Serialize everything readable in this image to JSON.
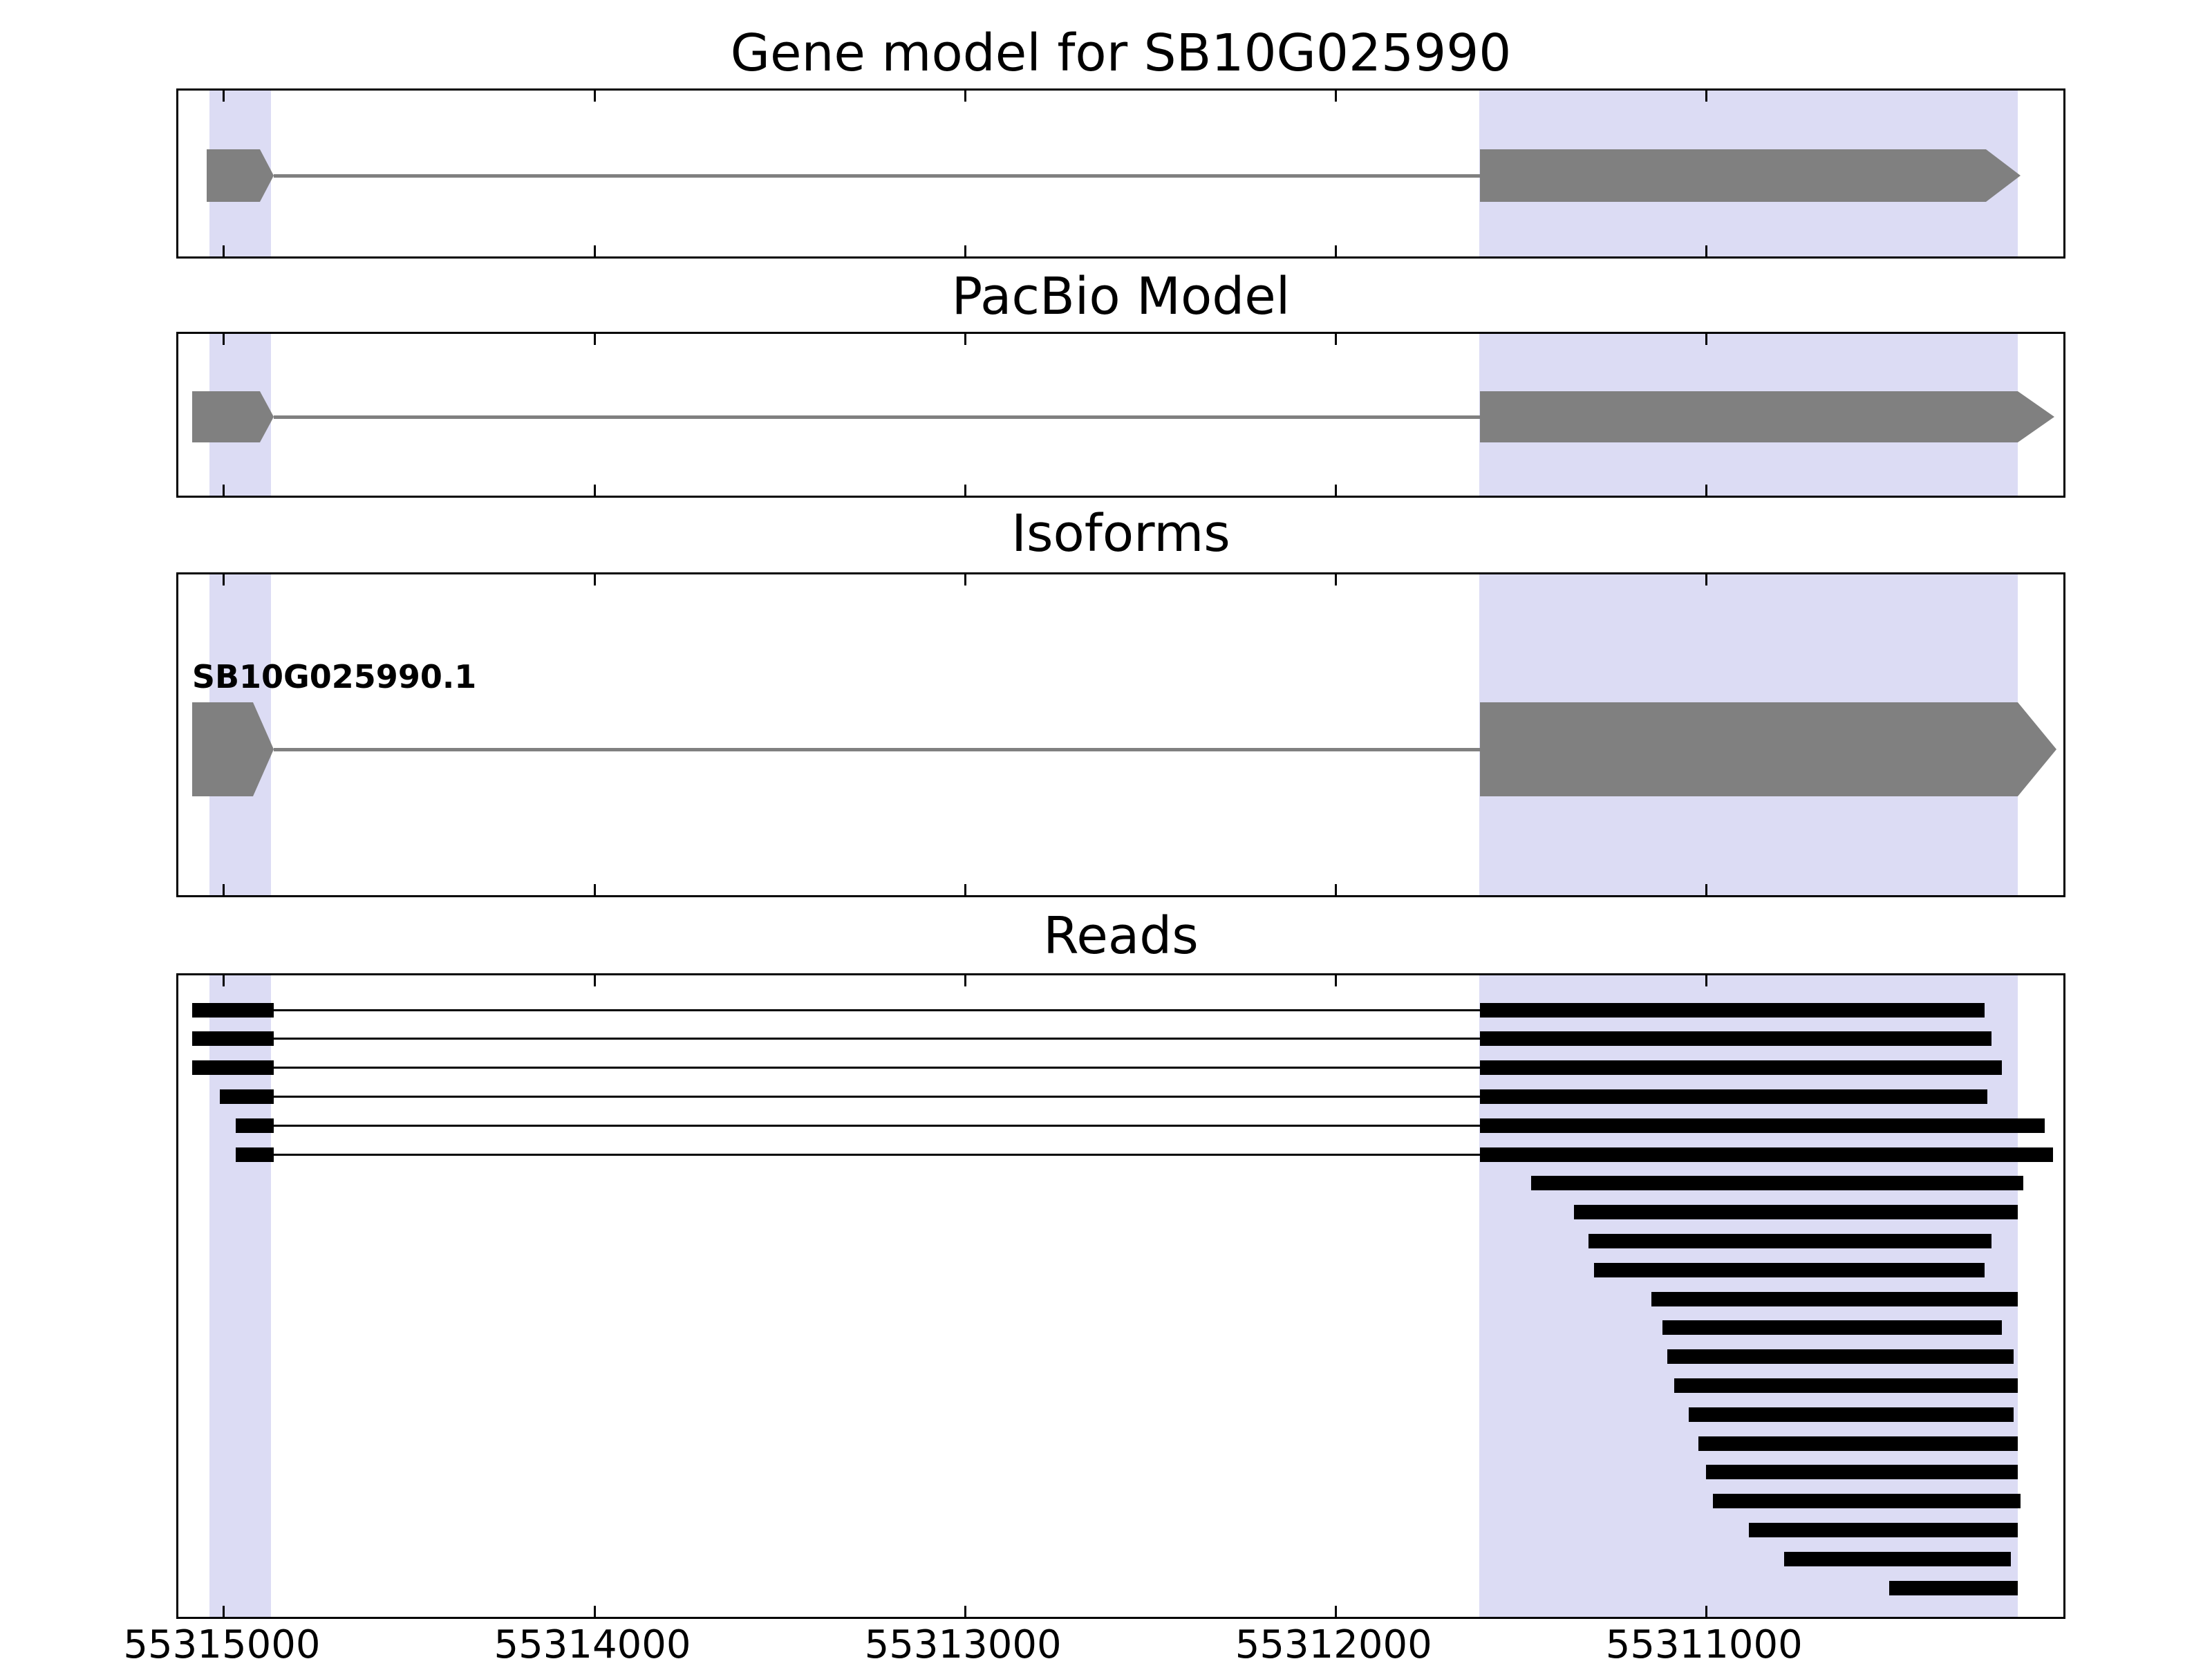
{
  "colors": {
    "background": "#ffffff",
    "highlight_band": "#dcdcf4",
    "gene_fill": "#808080",
    "read_fill": "#000000",
    "axis": "#000000"
  },
  "chart_data": {
    "type": "bar",
    "subtype": "genome-browser-tracks",
    "x_axis": {
      "domain": [
        55315123,
        55310025
      ],
      "reversed": true,
      "ticks": [
        55315000,
        55314000,
        55313000,
        55312000,
        55311000
      ],
      "tick_labels": [
        "55315000",
        "55314000",
        "55313000",
        "55312000",
        "55311000"
      ]
    },
    "highlight_regions": [
      {
        "start": 55315039,
        "end": 55314873
      },
      {
        "start": 55311612,
        "end": 55310159
      }
    ],
    "panels": [
      {
        "key": "gene_model",
        "title": "Gene model for SB10G025990",
        "features": [
          {
            "label": "",
            "exon_left": [
              55315047,
              55314866
            ],
            "intron": [
              55314866,
              55311610
            ],
            "body": [
              55311610,
              55310245
            ],
            "tip": 55310150
          }
        ]
      },
      {
        "key": "pacbio_model",
        "title": "PacBio Model",
        "features": [
          {
            "label": "",
            "exon_left": [
              55315086,
              55314866
            ],
            "intron": [
              55314866,
              55311610
            ],
            "body": [
              55311610,
              55310160
            ],
            "tip": 55310060
          }
        ]
      },
      {
        "key": "isoforms",
        "title": "Isoforms",
        "features": [
          {
            "label": "SB10G025990.1",
            "exon_left": [
              55315086,
              55314866
            ],
            "intron": [
              55314866,
              55311610
            ],
            "body": [
              55311610,
              55310160
            ],
            "tip": 55310055
          }
        ]
      },
      {
        "key": "reads",
        "title": "Reads",
        "reads": [
          {
            "segments": [
              [
                55315086,
                55314866
              ],
              [
                55311610,
                55310249
              ]
            ]
          },
          {
            "segments": [
              [
                55315086,
                55314866
              ],
              [
                55311610,
                55310230
              ]
            ]
          },
          {
            "segments": [
              [
                55315086,
                55314866
              ],
              [
                55311610,
                55310203
              ]
            ]
          },
          {
            "segments": [
              [
                55315012,
                55314866
              ],
              [
                55311610,
                55310241
              ]
            ]
          },
          {
            "segments": [
              [
                55314969,
                55314866
              ],
              [
                55311610,
                55310086
              ]
            ]
          },
          {
            "segments": [
              [
                55314969,
                55314866
              ],
              [
                55311610,
                55310065
              ]
            ]
          },
          {
            "segments": [
              [
                55311473,
                55310144
              ]
            ]
          },
          {
            "segments": [
              [
                55311357,
                55310159
              ]
            ]
          },
          {
            "segments": [
              [
                55311318,
                55310230
              ]
            ]
          },
          {
            "segments": [
              [
                55311303,
                55310249
              ]
            ]
          },
          {
            "segments": [
              [
                55311148,
                55310159
              ]
            ]
          },
          {
            "segments": [
              [
                55311118,
                55310203
              ]
            ]
          },
          {
            "segments": [
              [
                55311105,
                55310170
              ]
            ]
          },
          {
            "segments": [
              [
                55311086,
                55310159
              ]
            ]
          },
          {
            "segments": [
              [
                55311047,
                55310170
              ]
            ]
          },
          {
            "segments": [
              [
                55311021,
                55310159
              ]
            ]
          },
          {
            "segments": [
              [
                55311001,
                55310159
              ]
            ]
          },
          {
            "segments": [
              [
                55310982,
                55310151
              ]
            ]
          },
          {
            "segments": [
              [
                55310885,
                55310159
              ]
            ]
          },
          {
            "segments": [
              [
                55310790,
                55310178
              ]
            ]
          },
          {
            "segments": [
              [
                55310506,
                55310159
              ]
            ]
          }
        ]
      }
    ]
  }
}
